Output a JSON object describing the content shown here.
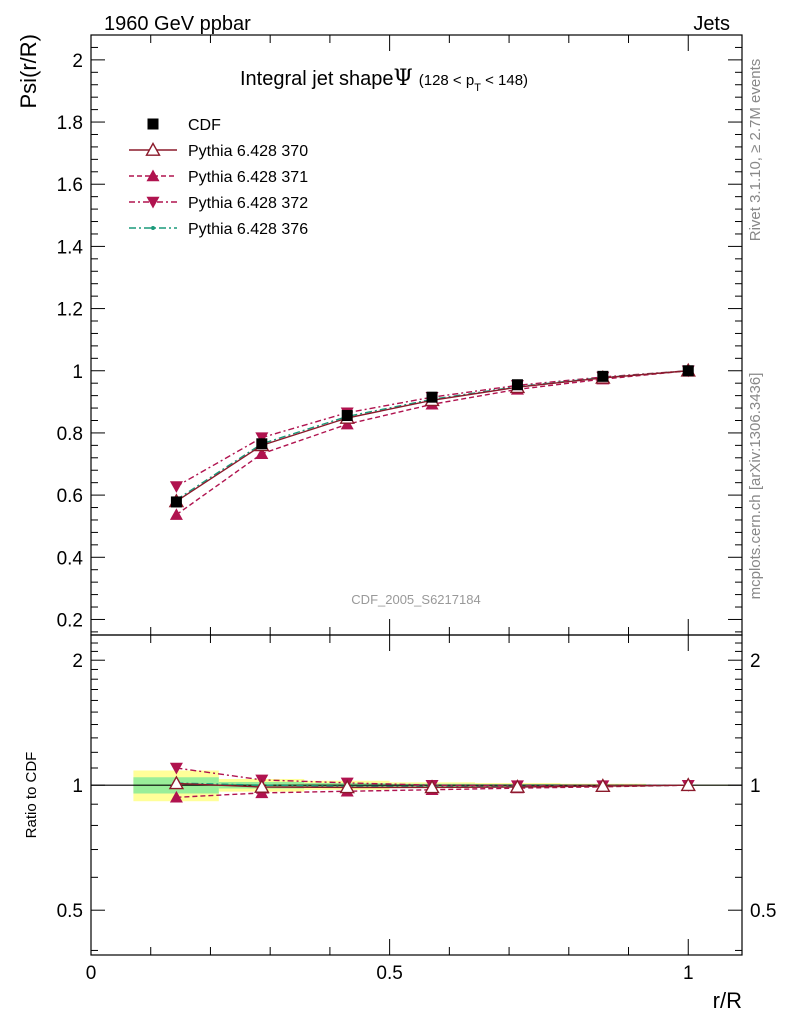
{
  "header": {
    "left": "1960 GeV ppbar",
    "right": "Jets"
  },
  "side_labels": {
    "rivet": "Rivet 3.1.10, ≥ 2.7M events",
    "mcplots": "mcplots.cern.ch [arXiv:1306.3436]"
  },
  "watermark": "CDF_2005_S6217184",
  "title": {
    "main": "Integral jet shape",
    "symbol": "Ψ",
    "range_pre": "(128 < p",
    "range_sub": "T",
    "range_post": " < 148)"
  },
  "axes": {
    "ylabel_top": "Psi(r/R)",
    "ylabel_bottom": "Ratio to CDF",
    "xlabel": "r/R"
  },
  "colors": {
    "data": "#000000",
    "p370": "#8b1a2b",
    "p371": "#b0134f",
    "p372": "#b0134f",
    "p376": "#1a9a7a",
    "band_yellow": "#ffff99",
    "band_green": "#99ee99"
  },
  "legend": [
    {
      "key": "data",
      "label": "CDF",
      "marker": "square"
    },
    {
      "key": "p370",
      "label": "Pythia 6.428 370",
      "marker": "triangle-open"
    },
    {
      "key": "p371",
      "label": "Pythia 6.428 371",
      "marker": "triangle-up"
    },
    {
      "key": "p372",
      "label": "Pythia 6.428 372",
      "marker": "triangle-down"
    },
    {
      "key": "p376",
      "label": "Pythia 6.428 376",
      "marker": "dot"
    }
  ],
  "chart_data": [
    {
      "type": "line",
      "title": "Integral jet shape Ψ (128 < pT < 148)",
      "xlabel": "r/R",
      "ylabel": "Psi(r/R)",
      "xlim": [
        0,
        1.09
      ],
      "ylim": [
        0.15,
        2.08
      ],
      "x": [
        0.143,
        0.286,
        0.429,
        0.571,
        0.714,
        0.857,
        1.0
      ],
      "x_ticklabels": [
        "0",
        "0.5",
        "1"
      ],
      "y_ticks": [
        0.2,
        0.4,
        0.6,
        0.8,
        1,
        1.2,
        1.4,
        1.6,
        1.8,
        2
      ],
      "y_ticklabels": [
        "0.2",
        "0.4",
        "0.6",
        "0.8",
        "1",
        "1.2",
        "1.4",
        "1.6",
        "1.8",
        "2"
      ],
      "series": [
        {
          "key": "data",
          "name": "CDF",
          "values": [
            0.578,
            0.765,
            0.856,
            0.915,
            0.955,
            0.982,
            1.0
          ]
        },
        {
          "key": "p370",
          "name": "Pythia 6.428 370",
          "values": [
            0.58,
            0.76,
            0.848,
            0.905,
            0.947,
            0.977,
            1.0
          ]
        },
        {
          "key": "p371",
          "name": "Pythia 6.428 371",
          "values": [
            0.537,
            0.733,
            0.828,
            0.892,
            0.94,
            0.973,
            1.0
          ]
        },
        {
          "key": "p372",
          "name": "Pythia 6.428 372",
          "values": [
            0.628,
            0.785,
            0.865,
            0.915,
            0.953,
            0.98,
            1.0
          ]
        },
        {
          "key": "p376",
          "name": "Pythia 6.428 376",
          "values": [
            0.585,
            0.765,
            0.853,
            0.908,
            0.949,
            0.978,
            1.0
          ]
        }
      ]
    },
    {
      "type": "line",
      "xlabel": "r/R",
      "ylabel": "Ratio to CDF",
      "xlim": [
        0,
        1.09
      ],
      "ylim": [
        0.39,
        2.3
      ],
      "y_scale": "log",
      "y_ticks": [
        0.5,
        1,
        2
      ],
      "y_ticklabels": [
        "0.5",
        "1",
        "2"
      ],
      "x": [
        0.143,
        0.286,
        0.429,
        0.571,
        0.714,
        0.857,
        1.0
      ],
      "band_edges": [
        0.071,
        0.214,
        0.357,
        0.5,
        0.643,
        0.786,
        0.929,
        1.071
      ],
      "band_yellow_halfwidth": [
        0.085,
        0.035,
        0.025,
        0.016,
        0.012,
        0.008,
        0.003
      ],
      "band_green_halfwidth": [
        0.045,
        0.018,
        0.012,
        0.008,
        0.006,
        0.004,
        0.002
      ],
      "series": [
        {
          "key": "p370",
          "name": "Pythia 6.428 370",
          "values": [
            1.01,
            0.99,
            0.988,
            0.988,
            0.99,
            0.995,
            1.0
          ]
        },
        {
          "key": "p371",
          "name": "Pythia 6.428 371",
          "values": [
            0.935,
            0.958,
            0.967,
            0.975,
            0.984,
            0.991,
            1.0
          ]
        },
        {
          "key": "p372",
          "name": "Pythia 6.428 372",
          "values": [
            1.1,
            1.03,
            1.013,
            1.0,
            0.998,
            0.998,
            1.0
          ]
        },
        {
          "key": "p376",
          "name": "Pythia 6.428 376",
          "values": [
            1.012,
            1.0,
            0.995,
            0.992,
            0.993,
            0.996,
            1.0
          ]
        }
      ]
    }
  ]
}
